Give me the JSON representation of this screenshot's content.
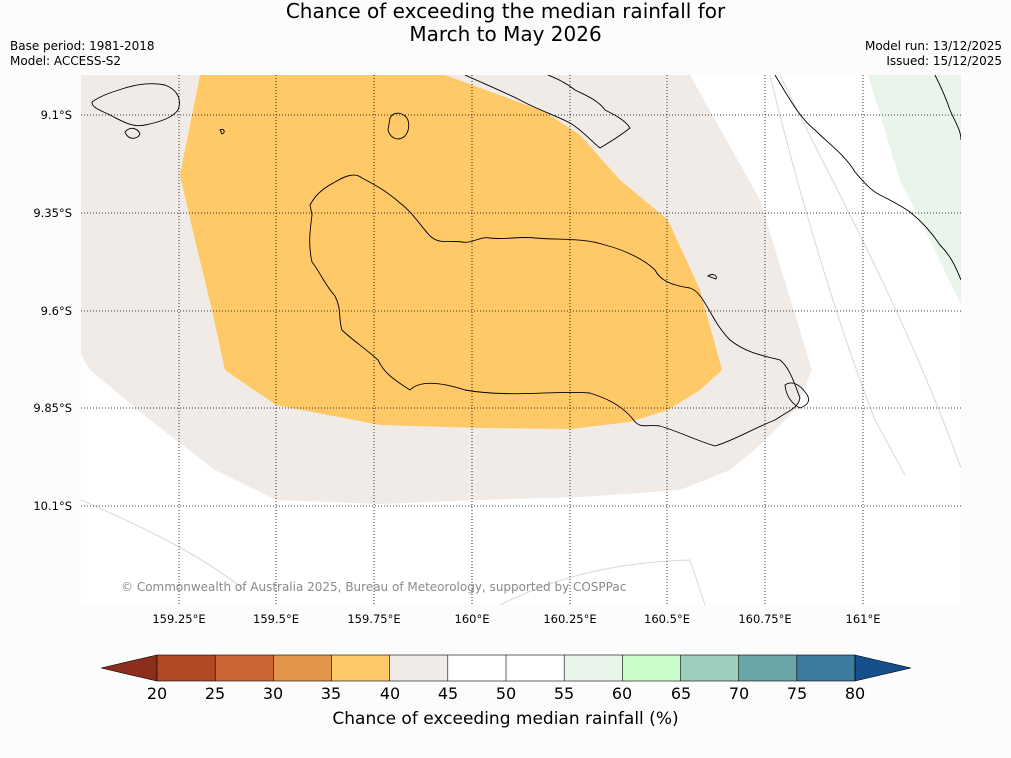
{
  "title": {
    "line1": "Chance of exceeding the median rainfall for",
    "line2": "March to May 2026"
  },
  "meta": {
    "base_period": "Base period: 1981-2018",
    "model": "Model: ACCESS-S2",
    "model_run": "Model run: 13/12/2025",
    "issued": "Issued: 15/12/2025"
  },
  "map": {
    "lat_labels": [
      "9.1°S",
      "9.35°S",
      "9.6°S",
      "9.85°S",
      "10.1°S"
    ],
    "lon_labels": [
      "159.25°E",
      "159.5°E",
      "159.75°E",
      "160°E",
      "160.25°E",
      "160.5°E",
      "160.75°E",
      "161°E"
    ],
    "colors": {
      "band_35_40": "#fec966",
      "band_40_45": "#f0ebe6",
      "band_45_55": "#ffffff",
      "band_55_60": "#e9f5ea",
      "coastline": "#000000",
      "grid": "#000000"
    },
    "copyright": "© Commonwealth of Australia 2025, Bureau of Meteorology, supported by COSPPac"
  },
  "colorbar": {
    "label": "Chance of exceeding median rainfall (%)",
    "ticks": [
      "20",
      "25",
      "30",
      "35",
      "40",
      "45",
      "50",
      "55",
      "60",
      "65",
      "70",
      "75",
      "80"
    ],
    "colors": {
      "below_20": "#8b2e1c",
      "c20_25": "#b34a26",
      "c25_30": "#cc6433",
      "c30_35": "#e29548",
      "c35_40": "#fec966",
      "c40_45": "#f0ebe6",
      "c45_50": "#ffffff",
      "c50_55": "#ffffff",
      "c55_60": "#e9f5ea",
      "c60_65": "#c8fcc8",
      "c65_70": "#9cd0bc",
      "c70_75": "#6aa5a8",
      "c75_80": "#3d7b9f",
      "above_80": "#164f8c"
    }
  }
}
